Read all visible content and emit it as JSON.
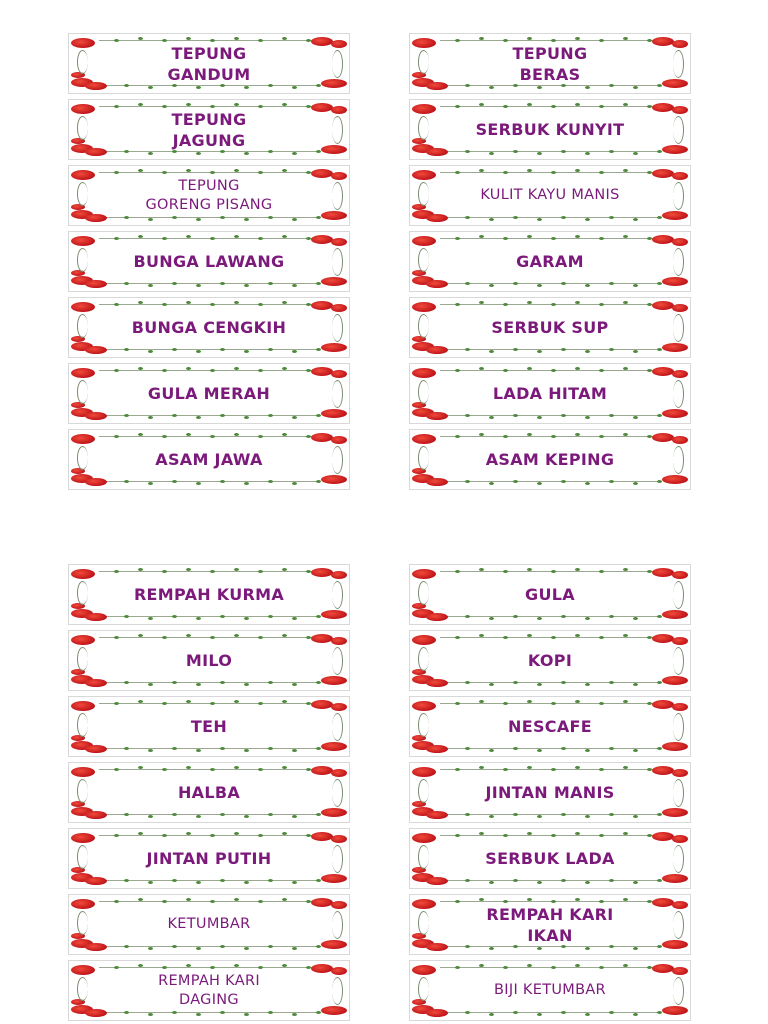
{
  "groups": [
    {
      "left": [
        "TEPUNG\nGANDUM",
        "TEPUNG\nJAGUNG",
        "TEPUNG\nGORENG PISANG",
        "BUNGA LAWANG",
        "BUNGA CENGKIH",
        "GULA MERAH",
        "ASAM JAWA"
      ],
      "right": [
        "TEPUNG\nBERAS",
        "SERBUK KUNYIT",
        "KULIT KAYU MANIS",
        "GARAM",
        "SERBUK SUP",
        "LADA HITAM",
        "ASAM KEPING"
      ]
    },
    {
      "left": [
        "REMPAH KURMA",
        "MILO",
        "TEH",
        "HALBA",
        "JINTAN PUTIH",
        "KETUMBAR",
        "REMPAH KARI\nDAGING"
      ],
      "right": [
        "GULA",
        "KOPI",
        "NESCAFE",
        "JINTAN MANIS",
        "SERBUK LADA",
        "REMPAH KARI\nIKAN",
        "BIJI KETUMBAR"
      ]
    }
  ],
  "colors": {
    "text": "#7b1a7b",
    "flower": "#c0141a",
    "vine": "#4f8a3c"
  }
}
